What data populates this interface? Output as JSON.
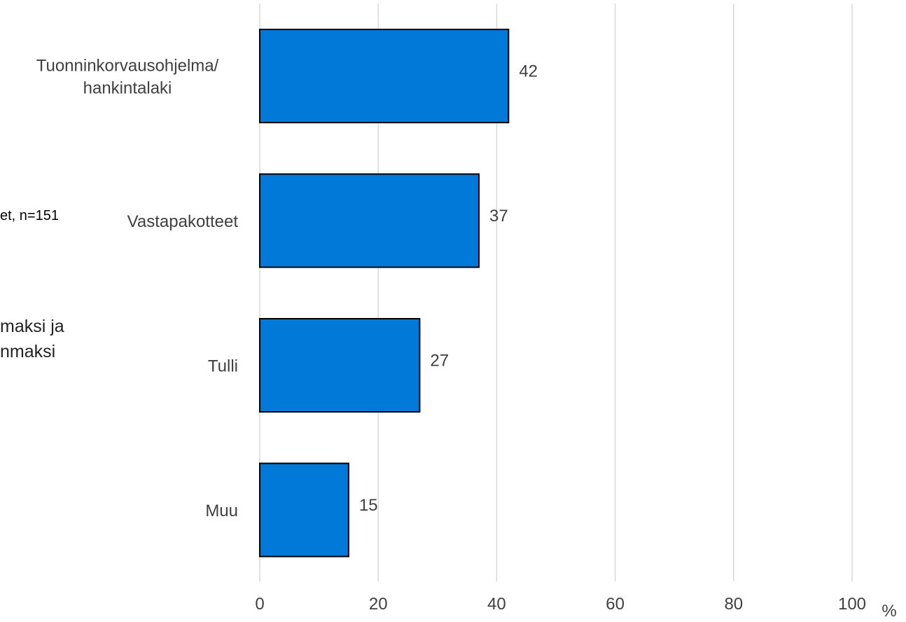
{
  "fragments": {
    "sample_note": "et, n=151",
    "title_line1": "maksi ja",
    "title_line2": "nmaksi"
  },
  "chart_data": {
    "type": "bar",
    "orientation": "horizontal",
    "categories": [
      [
        "Tuonninkorvausohjelma/",
        "hankintalaki"
      ],
      [
        "Vastapakotteet"
      ],
      [
        "Tulli"
      ],
      [
        "Muu"
      ]
    ],
    "values": [
      42,
      37,
      27,
      15
    ],
    "data_labels": [
      "42",
      "37",
      "27",
      "15"
    ],
    "x_ticks": [
      "0",
      "20",
      "40",
      "60",
      "80",
      "100"
    ],
    "x_tick_values": [
      0,
      20,
      40,
      60,
      80,
      100
    ],
    "xlim": [
      0,
      100
    ],
    "unit_label": "%",
    "grid": true,
    "colors": {
      "bar_fill": "#0079D9",
      "bar_stroke": "#000000",
      "grid": "#d9d9d9",
      "text": "#404040"
    }
  }
}
